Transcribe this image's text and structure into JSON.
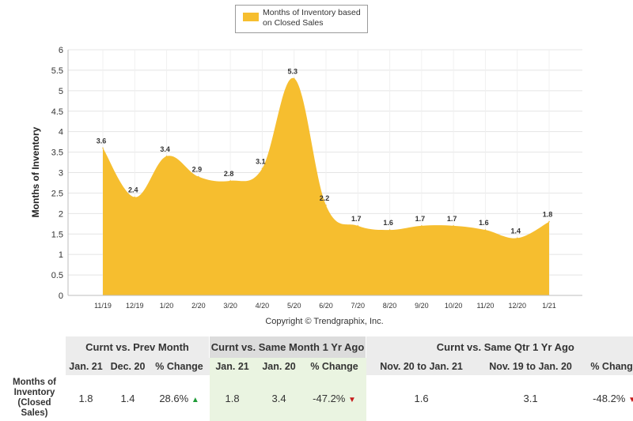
{
  "chart_data": {
    "type": "area",
    "categories": [
      "11/19",
      "12/19",
      "1/20",
      "2/20",
      "3/20",
      "4/20",
      "5/20",
      "6/20",
      "7/20",
      "8/20",
      "9/20",
      "10/20",
      "11/20",
      "12/20",
      "1/21"
    ],
    "series": [
      {
        "name": "Months of Inventory based on Closed Sales",
        "values": [
          3.6,
          2.4,
          3.4,
          2.9,
          2.8,
          3.1,
          5.3,
          2.2,
          1.7,
          1.6,
          1.7,
          1.7,
          1.6,
          1.4,
          1.8
        ],
        "labels": [
          "3.6",
          "2.4",
          "3.4",
          "2.9",
          "2.8",
          "3.1",
          "5.3",
          "2.2",
          "1.7",
          "1.6",
          "1.7",
          "1.7",
          "1.6",
          "1.4",
          "1.8"
        ]
      }
    ],
    "ylabel": "Months of Inventory",
    "xlabel": "Copyright © Trendgraphix, Inc.",
    "ylim": [
      0,
      6
    ],
    "yticks": [
      "0",
      "0.5",
      "1",
      "1.5",
      "2",
      "2.5",
      "3",
      "3.5",
      "4",
      "4.5",
      "5",
      "5.5",
      "6"
    ],
    "grid": true,
    "legend": "top-center",
    "color": "#f6be2f"
  },
  "legend": {
    "line1": "Months of Inventory based",
    "line2": "on Closed Sales"
  },
  "table": {
    "groups": [
      "Curnt vs. Prev Month",
      "Curnt vs. Same Month 1 Yr Ago",
      "Curnt vs. Same Qtr 1 Yr Ago"
    ],
    "headers": [
      "Jan. 21",
      "Dec. 20",
      "% Change",
      "Jan. 21",
      "Jan. 20",
      "% Change",
      "Nov. 20 to Jan. 21",
      "Nov. 19 to Jan. 20",
      "% Change"
    ],
    "row_label": [
      "Months of",
      "Inventory",
      "(Closed",
      "Sales)"
    ],
    "values": [
      "1.8",
      "1.4",
      "28.6%",
      "1.8",
      "3.4",
      "-47.2%",
      "1.6",
      "3.1",
      "-48.2%"
    ],
    "arrows": {
      "up": "▲",
      "down": "▼"
    },
    "up_color": "#1e9b37",
    "down_color": "#c61b1b"
  }
}
